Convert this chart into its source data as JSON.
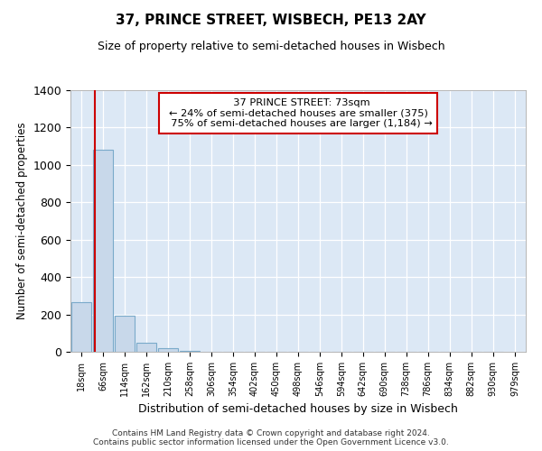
{
  "title": "37, PRINCE STREET, WISBECH, PE13 2AY",
  "subtitle": "Size of property relative to semi-detached houses in Wisbech",
  "xlabel": "Distribution of semi-detached houses by size in Wisbech",
  "ylabel": "Number of semi-detached properties",
  "property_size": 73,
  "property_label": "37 PRINCE STREET: 73sqm",
  "pct_smaller": 24,
  "count_smaller": 375,
  "pct_larger": 75,
  "count_larger": 1184,
  "bar_color": "#c8d8ea",
  "bar_edge_color": "#7aaaca",
  "vline_color": "#cc0000",
  "annotation_box_edge_color": "#cc0000",
  "background_color": "#dce8f5",
  "ylim": [
    0,
    1400
  ],
  "bin_labels": [
    "18sqm",
    "66sqm",
    "114sqm",
    "162sqm",
    "210sqm",
    "258sqm",
    "306sqm",
    "354sqm",
    "402sqm",
    "450sqm",
    "498sqm",
    "546sqm",
    "594sqm",
    "642sqm",
    "690sqm",
    "738sqm",
    "786sqm",
    "834sqm",
    "882sqm",
    "930sqm",
    "979sqm"
  ],
  "bin_edges": [
    18,
    66,
    114,
    162,
    210,
    258,
    306,
    354,
    402,
    450,
    498,
    546,
    594,
    642,
    690,
    738,
    786,
    834,
    882,
    930,
    979
  ],
  "bar_heights": [
    265,
    1080,
    195,
    50,
    20,
    5,
    2,
    1,
    0,
    0,
    0,
    0,
    0,
    0,
    0,
    0,
    0,
    0,
    0,
    0
  ],
  "footer_line1": "Contains HM Land Registry data © Crown copyright and database right 2024.",
  "footer_line2": "Contains public sector information licensed under the Open Government Licence v3.0."
}
